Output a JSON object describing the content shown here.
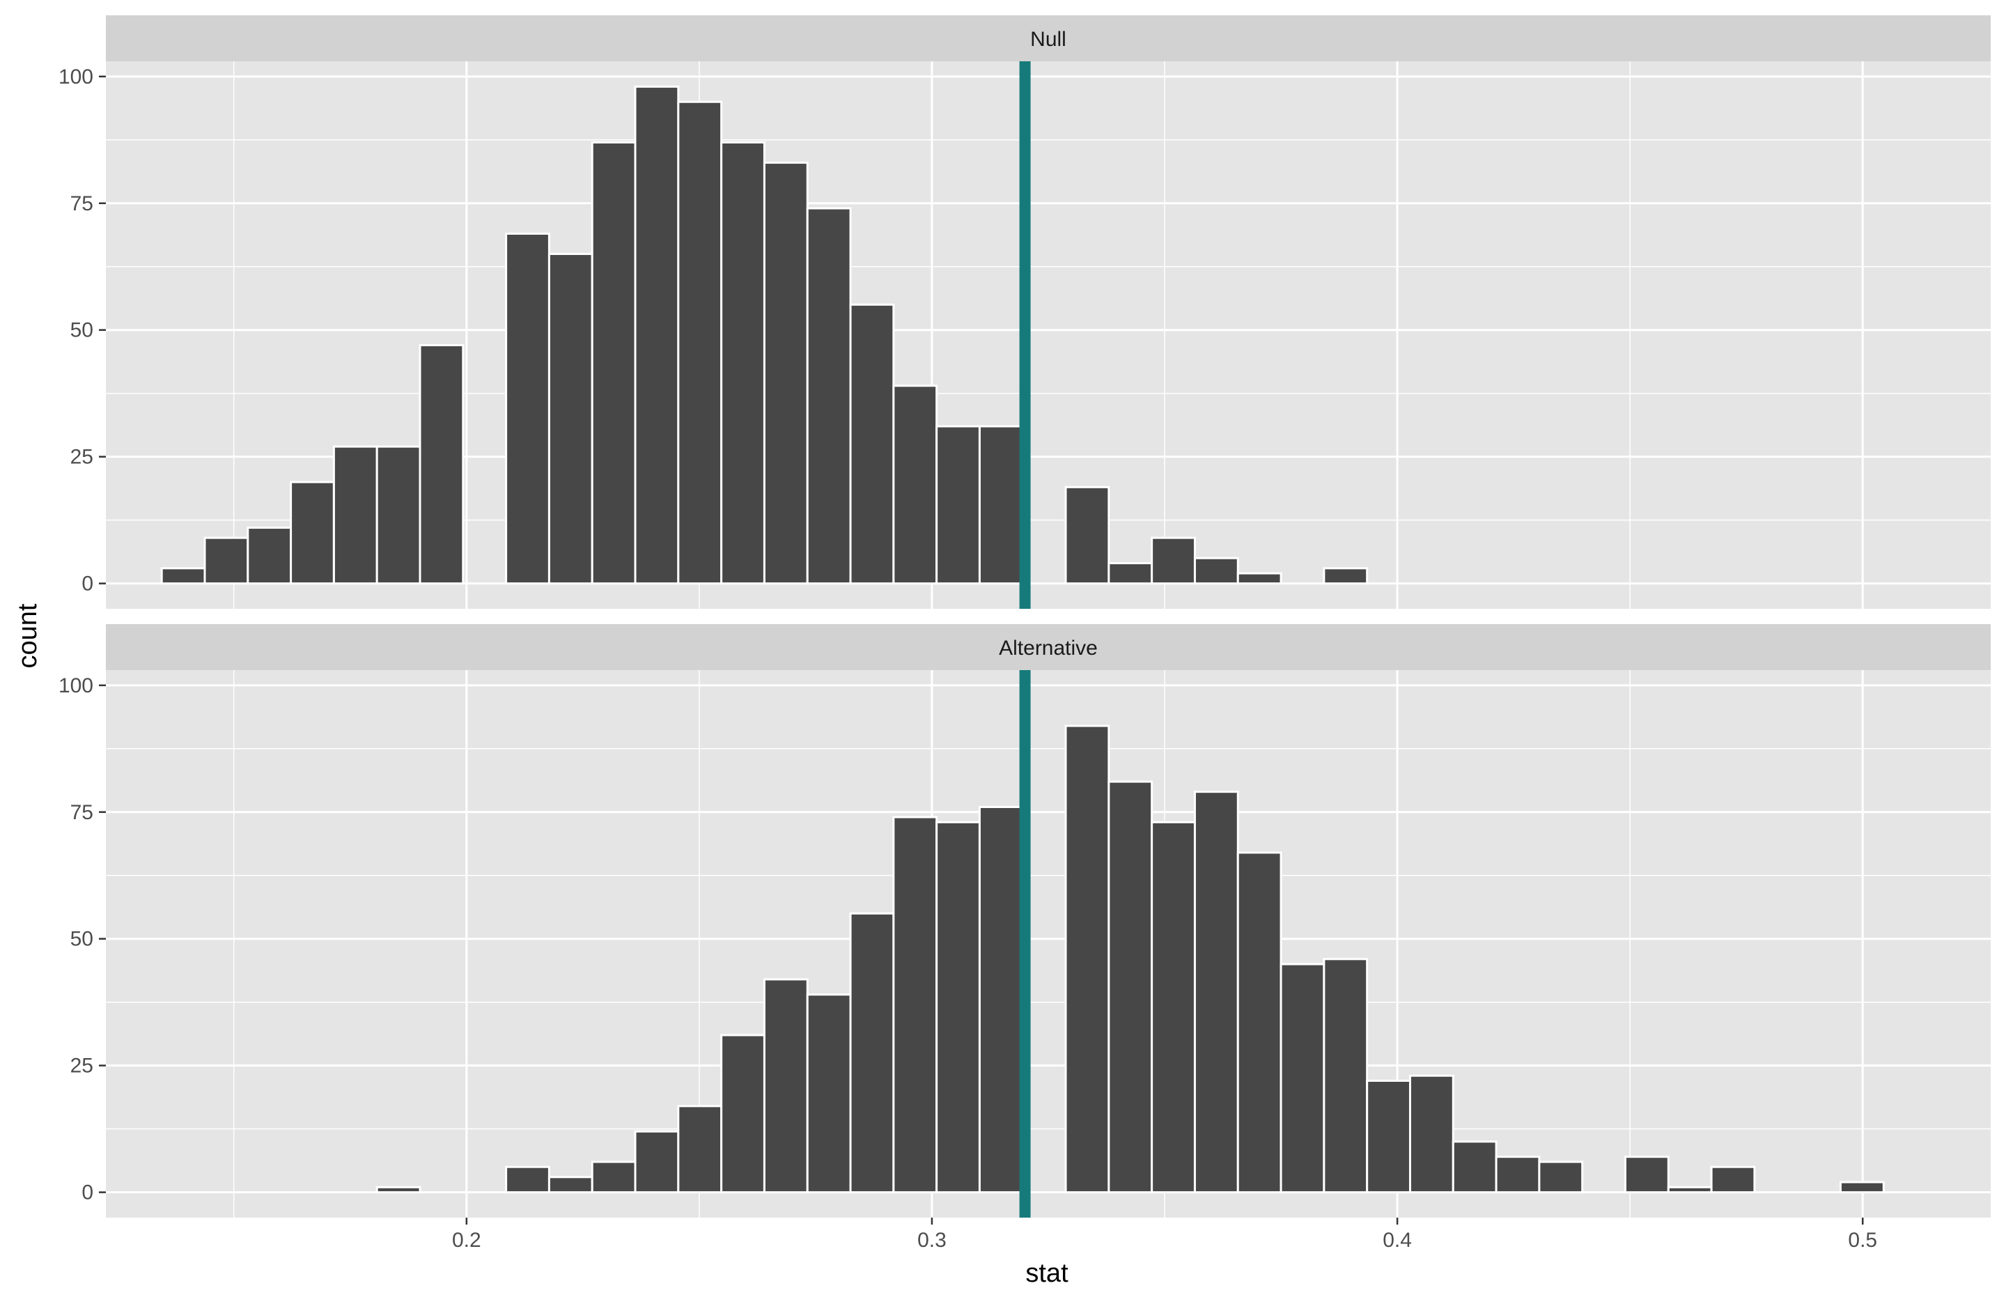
{
  "chart_data": {
    "type": "bar",
    "subtype": "faceted-histogram",
    "title": "",
    "xlabel": "stat",
    "ylabel": "count",
    "xlim": [
      0.1225,
      0.5275
    ],
    "ylim": [
      -5,
      103
    ],
    "x_ticks": [
      0.2,
      0.3,
      0.4,
      0.5
    ],
    "x_tick_labels": [
      "0.2",
      "0.3",
      "0.4",
      "0.5"
    ],
    "y_ticks": [
      0,
      25,
      50,
      75,
      100
    ],
    "y_tick_labels": [
      "0",
      "25",
      "50",
      "75",
      "100"
    ],
    "bin_width": 0.00925,
    "bin_start": 0.1345,
    "reference_line": {
      "x": 0.32,
      "color": "#177a7a"
    },
    "colors": {
      "bar_fill": "#474747",
      "bar_stroke": "#ffffff",
      "panel_bg": "#e5e5e5",
      "strip_bg": "#d2d2d2",
      "grid": "#ffffff"
    },
    "grid": true,
    "legend": "none",
    "facets": [
      {
        "name": "Null",
        "counts": [
          3,
          9,
          11,
          20,
          27,
          27,
          47,
          0,
          69,
          65,
          87,
          98,
          95,
          87,
          83,
          74,
          55,
          39,
          31,
          31,
          0,
          19,
          4,
          9,
          5,
          2,
          0,
          3,
          0,
          0,
          0,
          0,
          0,
          0,
          0,
          0,
          0,
          0,
          0,
          0
        ]
      },
      {
        "name": "Alternative",
        "counts": [
          0,
          0,
          0,
          0,
          0,
          1,
          0,
          0,
          5,
          3,
          6,
          12,
          17,
          31,
          42,
          39,
          55,
          74,
          73,
          76,
          0,
          92,
          81,
          73,
          79,
          67,
          45,
          46,
          22,
          23,
          10,
          7,
          6,
          0,
          7,
          1,
          5,
          0,
          0,
          2
        ]
      }
    ]
  }
}
